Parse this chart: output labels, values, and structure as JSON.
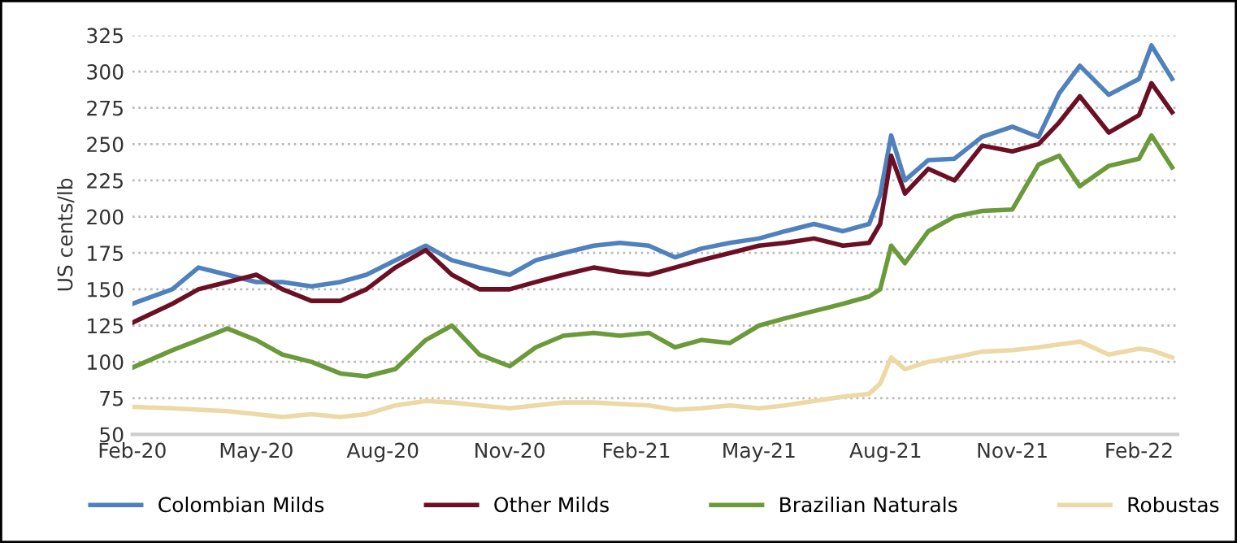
{
  "chart_data": {
    "type": "line",
    "ylabel": "US cents/lb",
    "x": [
      "2020-02-01",
      "2020-03-01",
      "2020-03-20",
      "2020-04-10",
      "2020-05-01",
      "2020-05-20",
      "2020-06-10",
      "2020-07-01",
      "2020-07-20",
      "2020-08-10",
      "2020-09-01",
      "2020-09-20",
      "2020-10-10",
      "2020-11-01",
      "2020-11-20",
      "2020-12-10",
      "2021-01-01",
      "2021-01-20",
      "2021-02-10",
      "2021-03-01",
      "2021-03-20",
      "2021-04-10",
      "2021-05-01",
      "2021-05-20",
      "2021-06-10",
      "2021-07-01",
      "2021-07-20",
      "2021-07-28",
      "2021-08-05",
      "2021-08-15",
      "2021-09-01",
      "2021-09-20",
      "2021-10-10",
      "2021-11-01",
      "2021-11-20",
      "2021-12-05",
      "2021-12-20",
      "2022-01-10",
      "2022-02-01",
      "2022-02-10",
      "2022-02-25"
    ],
    "series": [
      {
        "name": "Colombian Milds",
        "color": "#4f81bd",
        "values": [
          140,
          150,
          165,
          160,
          155,
          155,
          152,
          155,
          160,
          170,
          180,
          170,
          165,
          160,
          170,
          175,
          180,
          182,
          180,
          172,
          178,
          182,
          185,
          190,
          195,
          190,
          195,
          215,
          256,
          225,
          239,
          240,
          255,
          262,
          255,
          285,
          304,
          284,
          295,
          318,
          295
        ]
      },
      {
        "name": "Other Milds",
        "color": "#6b0f24",
        "values": [
          127,
          140,
          150,
          155,
          160,
          150,
          142,
          142,
          150,
          165,
          177,
          160,
          150,
          150,
          155,
          160,
          165,
          162,
          160,
          165,
          170,
          175,
          180,
          182,
          185,
          180,
          182,
          195,
          242,
          216,
          233,
          225,
          249,
          245,
          250,
          265,
          283,
          258,
          270,
          292,
          272
        ]
      },
      {
        "name": "Brazilian Naturals",
        "color": "#6a9a3a",
        "values": [
          96,
          108,
          115,
          123,
          115,
          105,
          100,
          92,
          90,
          95,
          115,
          125,
          105,
          97,
          110,
          118,
          120,
          118,
          120,
          110,
          115,
          113,
          125,
          130,
          135,
          140,
          145,
          150,
          180,
          168,
          190,
          200,
          204,
          205,
          236,
          242,
          221,
          235,
          240,
          256,
          234
        ]
      },
      {
        "name": "Robustas",
        "color": "#ecd9a5",
        "values": [
          69,
          68,
          67,
          66,
          64,
          62,
          64,
          62,
          64,
          70,
          73,
          72,
          70,
          68,
          70,
          72,
          72,
          71,
          70,
          67,
          68,
          70,
          68,
          70,
          73,
          76,
          78,
          85,
          103,
          95,
          100,
          103,
          107,
          108,
          110,
          112,
          114,
          105,
          109,
          108,
          103
        ]
      }
    ],
    "xlim": [
      "2020-02-01",
      "2022-03-01"
    ],
    "xticks": [
      {
        "value": "2020-02-01",
        "label": "Feb-20"
      },
      {
        "value": "2020-05-01",
        "label": "May-20"
      },
      {
        "value": "2020-08-01",
        "label": "Aug-20"
      },
      {
        "value": "2020-11-01",
        "label": "Nov-20"
      },
      {
        "value": "2021-02-01",
        "label": "Feb-21"
      },
      {
        "value": "2021-05-01",
        "label": "May-21"
      },
      {
        "value": "2021-08-01",
        "label": "Aug-21"
      },
      {
        "value": "2021-11-01",
        "label": "Nov-21"
      },
      {
        "value": "2022-02-01",
        "label": "Feb-22"
      }
    ],
    "ylim": [
      50,
      325
    ],
    "yticks": [
      50,
      75,
      100,
      125,
      150,
      175,
      200,
      225,
      250,
      275,
      300,
      325
    ],
    "grid": "y",
    "legend": "bottom",
    "line_style": "solid",
    "marker": "none"
  }
}
